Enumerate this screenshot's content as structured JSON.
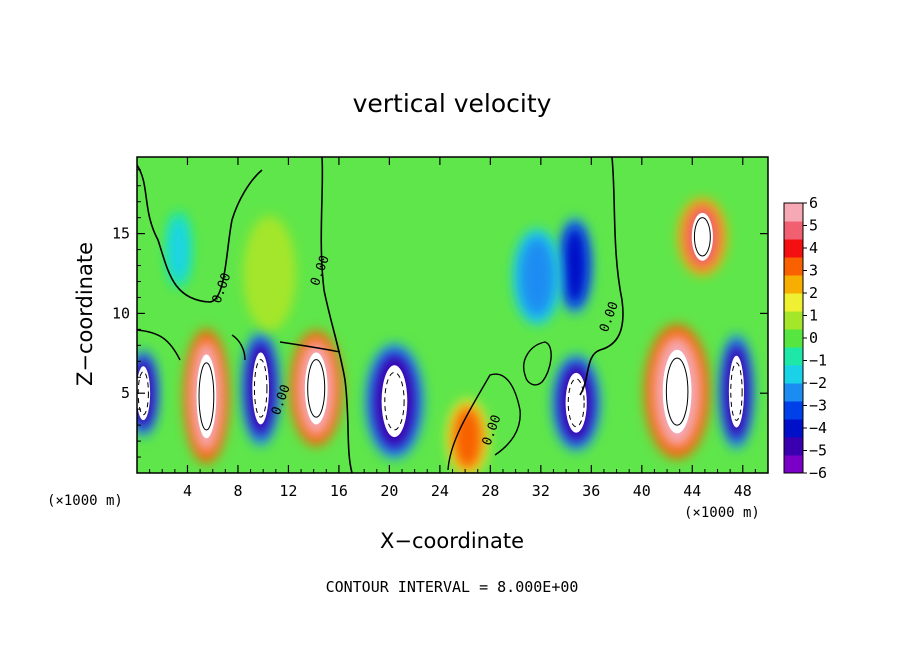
{
  "chart_data": {
    "type": "heatmap",
    "title": "vertical velocity",
    "xlabel": "X−coordinate",
    "ylabel": "Z−coordinate",
    "x_unit_label": "(×1000 m)",
    "x_ticks": [
      4,
      8,
      12,
      16,
      20,
      24,
      28,
      32,
      36,
      40,
      44,
      48
    ],
    "y_ticks": [
      5,
      10,
      15
    ],
    "xlim": [
      0,
      50
    ],
    "ylim": [
      0,
      19.8
    ],
    "colorbar": {
      "ticks": [
        6,
        5,
        4,
        3,
        2,
        1,
        0,
        -1,
        -2,
        -3,
        -4,
        -5,
        -6
      ],
      "tick_labels": [
        "6",
        "5",
        "4",
        "3",
        "2",
        "1",
        "0",
        "−1",
        "−2",
        "−3",
        "−4",
        "−5",
        "−6"
      ],
      "range": [
        -6,
        6
      ]
    },
    "contour_labels": [
      {
        "text": "0.00",
        "x": 7.0,
        "y": 11.5
      },
      {
        "text": "0.00",
        "x": 14.8,
        "y": 12.6
      },
      {
        "text": "0.00",
        "x": 11.7,
        "y": 4.5
      },
      {
        "text": "0.00",
        "x": 28.4,
        "y": 2.6
      },
      {
        "text": "0.00",
        "x": 37.7,
        "y": 9.7
      }
    ],
    "cells": [
      {
        "x": 0.5,
        "z": 5,
        "w": 1.8,
        "zw": 4.5,
        "v": -5
      },
      {
        "x": 5.5,
        "z": 4.8,
        "w": 2.6,
        "zw": 7,
        "v": 6
      },
      {
        "x": 9.8,
        "z": 5.3,
        "w": 2.2,
        "zw": 6,
        "v": -5
      },
      {
        "x": 14.2,
        "z": 5.3,
        "w": 3.0,
        "zw": 6,
        "v": 6
      },
      {
        "x": 20.4,
        "z": 4.5,
        "w": 3.4,
        "zw": 6,
        "v": -5
      },
      {
        "x": 26.2,
        "z": 2.2,
        "w": 2.4,
        "zw": 4,
        "v": 3
      },
      {
        "x": 34.8,
        "z": 4.4,
        "w": 2.8,
        "zw": 5,
        "v": -5
      },
      {
        "x": 44.8,
        "z": 14.8,
        "w": 2.8,
        "zw": 4,
        "v": 5
      },
      {
        "x": 34.7,
        "z": 13.0,
        "w": 2.0,
        "zw": 5,
        "v": -4
      },
      {
        "x": 31.7,
        "z": 12.3,
        "w": 2.8,
        "zw": 5,
        "v": -3
      },
      {
        "x": 42.8,
        "z": 5.1,
        "w": 3.8,
        "zw": 7,
        "v": 6
      },
      {
        "x": 47.5,
        "z": 5.1,
        "w": 2.0,
        "zw": 6,
        "v": -5
      },
      {
        "x": 3.3,
        "z": 14.0,
        "w": 1.5,
        "zw": 4,
        "v": -2
      },
      {
        "x": 10.5,
        "z": 12.5,
        "w": 3.0,
        "zw": 6,
        "v": 1
      }
    ]
  },
  "footer": "CONTOUR INTERVAL = 8.000E+00",
  "colors": {
    "background_field": "#5fe64a",
    "frame": "#000000",
    "scale": [
      "#7a00c8",
      "#3a00b0",
      "#0010c8",
      "#0040e8",
      "#1a8cf2",
      "#1ad2e8",
      "#1ee8a8",
      "#56e640",
      "#a4e62a",
      "#f0f032",
      "#f8ae00",
      "#f86000",
      "#f41010",
      "#f06070",
      "#f6a8b4"
    ]
  }
}
